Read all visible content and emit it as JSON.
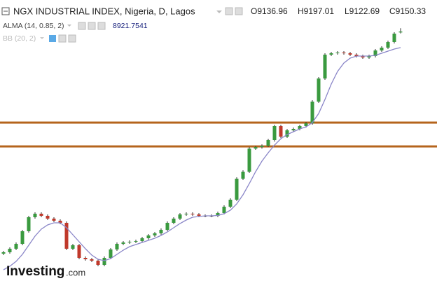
{
  "chart_data": {
    "type": "candlestick",
    "title": "NGX INDUSTRIAL INDEX, Nigeria, D, Lagos",
    "ohlc_labels": [
      "O9136.96",
      "H9197.01",
      "L9122.69",
      "C9150.33"
    ],
    "up_color": "#3a9a3f",
    "down_color": "#c0392b",
    "doji_color": "#222222",
    "ylim": [
      5290,
      9600
    ],
    "candles": {
      "open": [
        5980,
        6000,
        6050,
        6120,
        6300,
        6500,
        6550,
        6520,
        6480,
        6450,
        6420,
        6050,
        6100,
        5920,
        5900,
        5880,
        5820,
        5920,
        6040,
        6120,
        6140,
        6150,
        6160,
        6200,
        6240,
        6270,
        6320,
        6420,
        6480,
        6540,
        6550,
        6540,
        6520,
        6520,
        6520,
        6560,
        6650,
        6750,
        7050,
        7150,
        7480,
        7500,
        7520,
        7600,
        7800,
        7650,
        7740,
        7760,
        7800,
        7840,
        8150,
        8480,
        8820,
        8840,
        8850,
        8840,
        8820,
        8800,
        8780,
        8800,
        8880,
        8920,
        9000,
        9136.96
      ],
      "high": [
        6020,
        6070,
        6140,
        6320,
        6520,
        6570,
        6570,
        6540,
        6500,
        6470,
        6440,
        6120,
        6120,
        5940,
        5920,
        5900,
        5940,
        6060,
        6140,
        6160,
        6170,
        6180,
        6220,
        6260,
        6290,
        6340,
        6440,
        6500,
        6560,
        6570,
        6570,
        6560,
        6540,
        6540,
        6580,
        6670,
        6770,
        7070,
        7170,
        7500,
        7520,
        7540,
        7620,
        7820,
        7820,
        7760,
        7780,
        7820,
        7860,
        8170,
        8500,
        8840,
        8860,
        8870,
        8870,
        8860,
        8840,
        8820,
        8820,
        8900,
        8940,
        9020,
        9140,
        9197.01
      ],
      "low": [
        5960,
        5980,
        6030,
        6100,
        6280,
        6480,
        6500,
        6460,
        6430,
        6400,
        6030,
        6030,
        5900,
        5880,
        5860,
        5800,
        5800,
        5900,
        6020,
        6100,
        6120,
        6130,
        6140,
        6180,
        6220,
        6250,
        6300,
        6400,
        6460,
        6520,
        6520,
        6500,
        6500,
        6500,
        6500,
        6540,
        6630,
        6730,
        7030,
        7130,
        7460,
        7480,
        7500,
        7580,
        7630,
        7630,
        7720,
        7740,
        7780,
        7820,
        8130,
        8460,
        8800,
        8820,
        8820,
        8800,
        8780,
        8760,
        8760,
        8780,
        8860,
        8900,
        8980,
        9122.69
      ],
      "close": [
        6000,
        6050,
        6120,
        6300,
        6500,
        6550,
        6520,
        6480,
        6450,
        6420,
        6050,
        6100,
        5920,
        5900,
        5880,
        5820,
        5920,
        6040,
        6120,
        6140,
        6150,
        6160,
        6200,
        6240,
        6270,
        6320,
        6420,
        6480,
        6540,
        6550,
        6540,
        6520,
        6520,
        6520,
        6560,
        6650,
        6750,
        7050,
        7150,
        7480,
        7500,
        7520,
        7600,
        7800,
        7650,
        7740,
        7760,
        7800,
        7840,
        8150,
        8480,
        8820,
        8840,
        8850,
        8840,
        8820,
        8800,
        8780,
        8800,
        8880,
        8920,
        9000,
        9120,
        9150.33
      ]
    },
    "series": [
      {
        "name": "ALMA (14, 0.85, 2)",
        "color": "#8a86c8",
        "values": [
          5750,
          5800,
          5870,
          5970,
          6100,
          6230,
          6330,
          6390,
          6420,
          6420,
          6350,
          6250,
          6150,
          6050,
          5960,
          5900,
          5880,
          5910,
          5970,
          6030,
          6080,
          6110,
          6140,
          6170,
          6200,
          6240,
          6290,
          6350,
          6410,
          6460,
          6500,
          6510,
          6520,
          6520,
          6525,
          6550,
          6600,
          6690,
          6820,
          6980,
          7150,
          7300,
          7420,
          7530,
          7620,
          7680,
          7720,
          7760,
          7790,
          7850,
          7980,
          8180,
          8400,
          8580,
          8700,
          8770,
          8800,
          8800,
          8800,
          8810,
          8840,
          8870,
          8900,
          8921.7541
        ]
      }
    ],
    "hidden_indicator": "BB (20, 2)",
    "hlines": [
      7850,
      7510
    ],
    "hline_color": "#b5641c",
    "watermark": {
      "brand": "Investing",
      "suffix": ".com"
    }
  }
}
